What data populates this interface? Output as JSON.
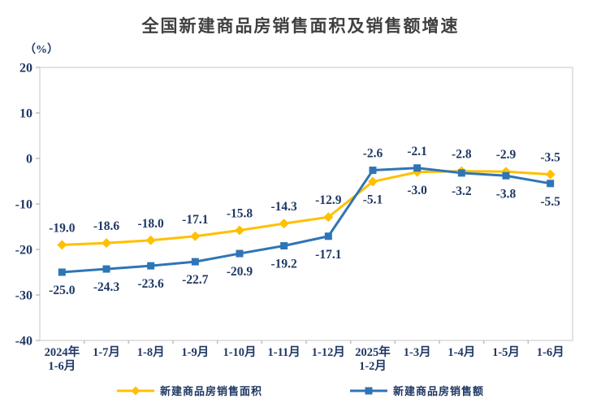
{
  "chart_data": {
    "type": "line",
    "title": "全国新建商品房销售面积及销售额增速",
    "unit_label": "（%）",
    "categories": [
      "2024年 1-6月",
      "1-7月",
      "1-8月",
      "1-9月",
      "1-10月",
      "1-11月",
      "1-12月",
      "2025年 1-2月",
      "1-3月",
      "1-4月",
      "1-5月",
      "1-6月"
    ],
    "series": [
      {
        "name": "新建商品房销售面积",
        "color": "#FFC000",
        "marker": "diamond",
        "values": [
          -19.0,
          -18.6,
          -18.0,
          -17.1,
          -15.8,
          -14.3,
          -12.9,
          -5.1,
          -3.0,
          -2.8,
          -2.9,
          -3.5
        ]
      },
      {
        "name": "新建商品房销售额",
        "color": "#2E75B6",
        "marker": "square",
        "values": [
          -25.0,
          -24.3,
          -23.6,
          -22.7,
          -20.9,
          -19.2,
          -17.1,
          -2.6,
          -2.1,
          -3.2,
          -3.8,
          -5.5
        ]
      }
    ],
    "ylim": [
      -40,
      20
    ],
    "yticks": [
      20,
      10,
      0,
      -10,
      -20,
      -30,
      -40
    ],
    "grid": "off",
    "data_labels": "on",
    "legend_position": "bottom",
    "colors": {
      "label_text": "#1F3864",
      "title_text": "#3F3F3F",
      "plot_border": "#D9D9D9",
      "axis_tick": "#BFBFBF",
      "background": "#FFFFFF"
    }
  }
}
